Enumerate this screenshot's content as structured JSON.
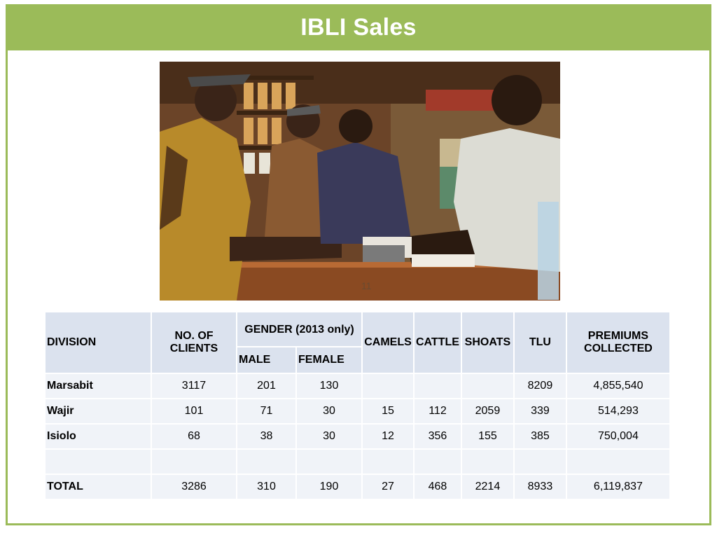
{
  "slide": {
    "title": "IBLI Sales",
    "accent_color": "#9bbb59",
    "photo_caption_number": "11"
  },
  "table": {
    "headers": {
      "division": "DIVISION",
      "clients": "NO. OF CLIENTS",
      "gender": "GENDER (2013 only)",
      "male": "MALE",
      "female": "FEMALE",
      "camels": "CAMELS",
      "cattle": "CATTLE",
      "shoats": "SHOATS",
      "tlu": "TLU",
      "premiums": "PREMIUMS COLLECTED"
    },
    "rows": [
      {
        "division": "Marsabit",
        "clients": "3117",
        "male": "201",
        "female": "130",
        "camels": "",
        "cattle": "",
        "shoats": "",
        "tlu": "8209",
        "premiums": "4,855,540"
      },
      {
        "division": "Wajir",
        "clients": "101",
        "male": "71",
        "female": "30",
        "camels": "15",
        "cattle": "112",
        "shoats": "2059",
        "tlu": "339",
        "premiums": "514,293"
      },
      {
        "division": "Isiolo",
        "clients": "68",
        "male": "38",
        "female": "30",
        "camels": "12",
        "cattle": "356",
        "shoats": "155",
        "tlu": "385",
        "premiums": "750,004"
      },
      {
        "division": "",
        "clients": "",
        "male": "",
        "female": "",
        "camels": "",
        "cattle": "",
        "shoats": "",
        "tlu": "",
        "premiums": ""
      }
    ],
    "total": {
      "division": "TOTAL",
      "clients": "3286",
      "male": "310",
      "female": "190",
      "camels": "27",
      "cattle": "468",
      "shoats": "2214",
      "tlu": "8933",
      "premiums": "6,119,837"
    }
  }
}
